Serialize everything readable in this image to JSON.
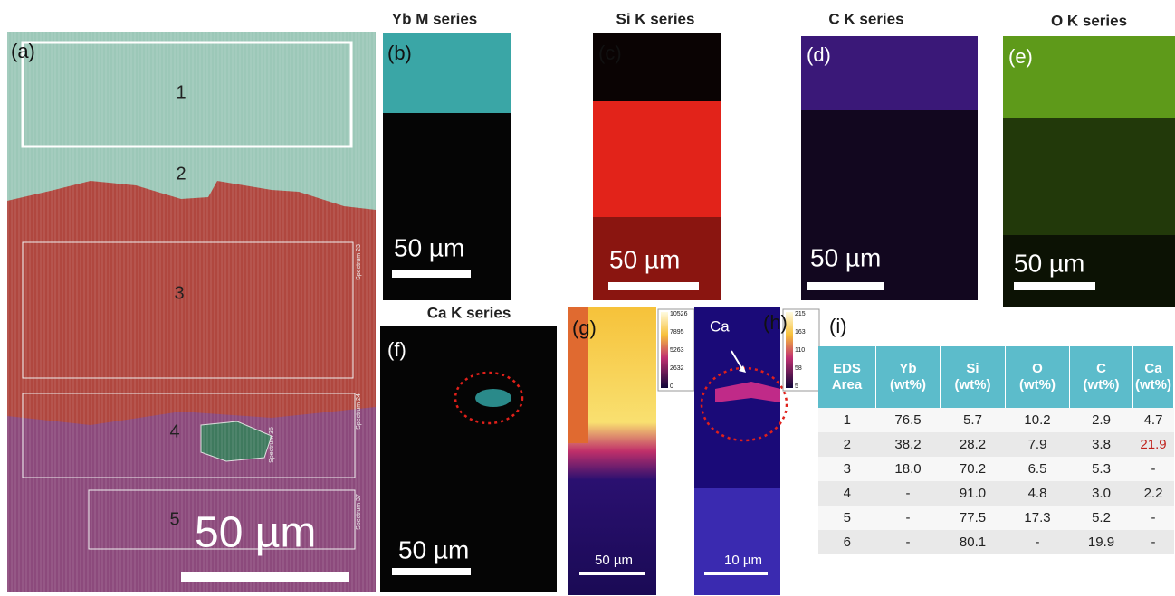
{
  "panels": {
    "a": {
      "label": "(a)",
      "regions": [
        "1",
        "2",
        "3",
        "4",
        "5"
      ],
      "spectra": [
        "Spectrum 23",
        "Spectrum 24",
        "Spectrum 36",
        "Spectrum 37"
      ],
      "scale_bar": "50 µm"
    },
    "b": {
      "label": "(b)",
      "title": "Yb M series",
      "scale_bar": "50 µm"
    },
    "c": {
      "label": "(c)",
      "title": "Si K series",
      "scale_bar": "50 µm"
    },
    "d": {
      "label": "(d)",
      "title": "C K series",
      "scale_bar": "50 µm"
    },
    "e": {
      "label": "(e)",
      "title": "O K series",
      "scale_bar": "50 µm"
    },
    "f": {
      "label": "(f)",
      "title": "Ca K series",
      "scale_bar": "50 µm"
    },
    "g": {
      "label": "(g)",
      "colorbar_ticks": [
        "10526",
        "7895",
        "5263",
        "2632",
        "0"
      ],
      "scale_bar": "50 µm"
    },
    "h": {
      "label": "(h)",
      "annotation": "Ca",
      "colorbar_ticks": [
        "215",
        "163",
        "110",
        "58",
        "5"
      ],
      "scale_bar": "10 µm"
    },
    "i": {
      "label": "(i)"
    }
  },
  "table": {
    "header": [
      "EDS Area",
      "Yb (wt%)",
      "Si (wt%)",
      "O (wt%)",
      "C (wt%)",
      "Ca (wt%)"
    ],
    "rows": [
      [
        "1",
        "76.5",
        "5.7",
        "10.2",
        "2.9",
        "4.7"
      ],
      [
        "2",
        "38.2",
        "28.2",
        "7.9",
        "3.8",
        "21.9"
      ],
      [
        "3",
        "18.0",
        "70.2",
        "6.5",
        "5.3",
        "-"
      ],
      [
        "4",
        "-",
        "91.0",
        "4.8",
        "3.0",
        "2.2"
      ],
      [
        "5",
        "-",
        "77.5",
        "17.3",
        "5.2",
        "-"
      ],
      [
        "6",
        "-",
        "80.1",
        "-",
        "19.9",
        "-"
      ]
    ]
  }
}
